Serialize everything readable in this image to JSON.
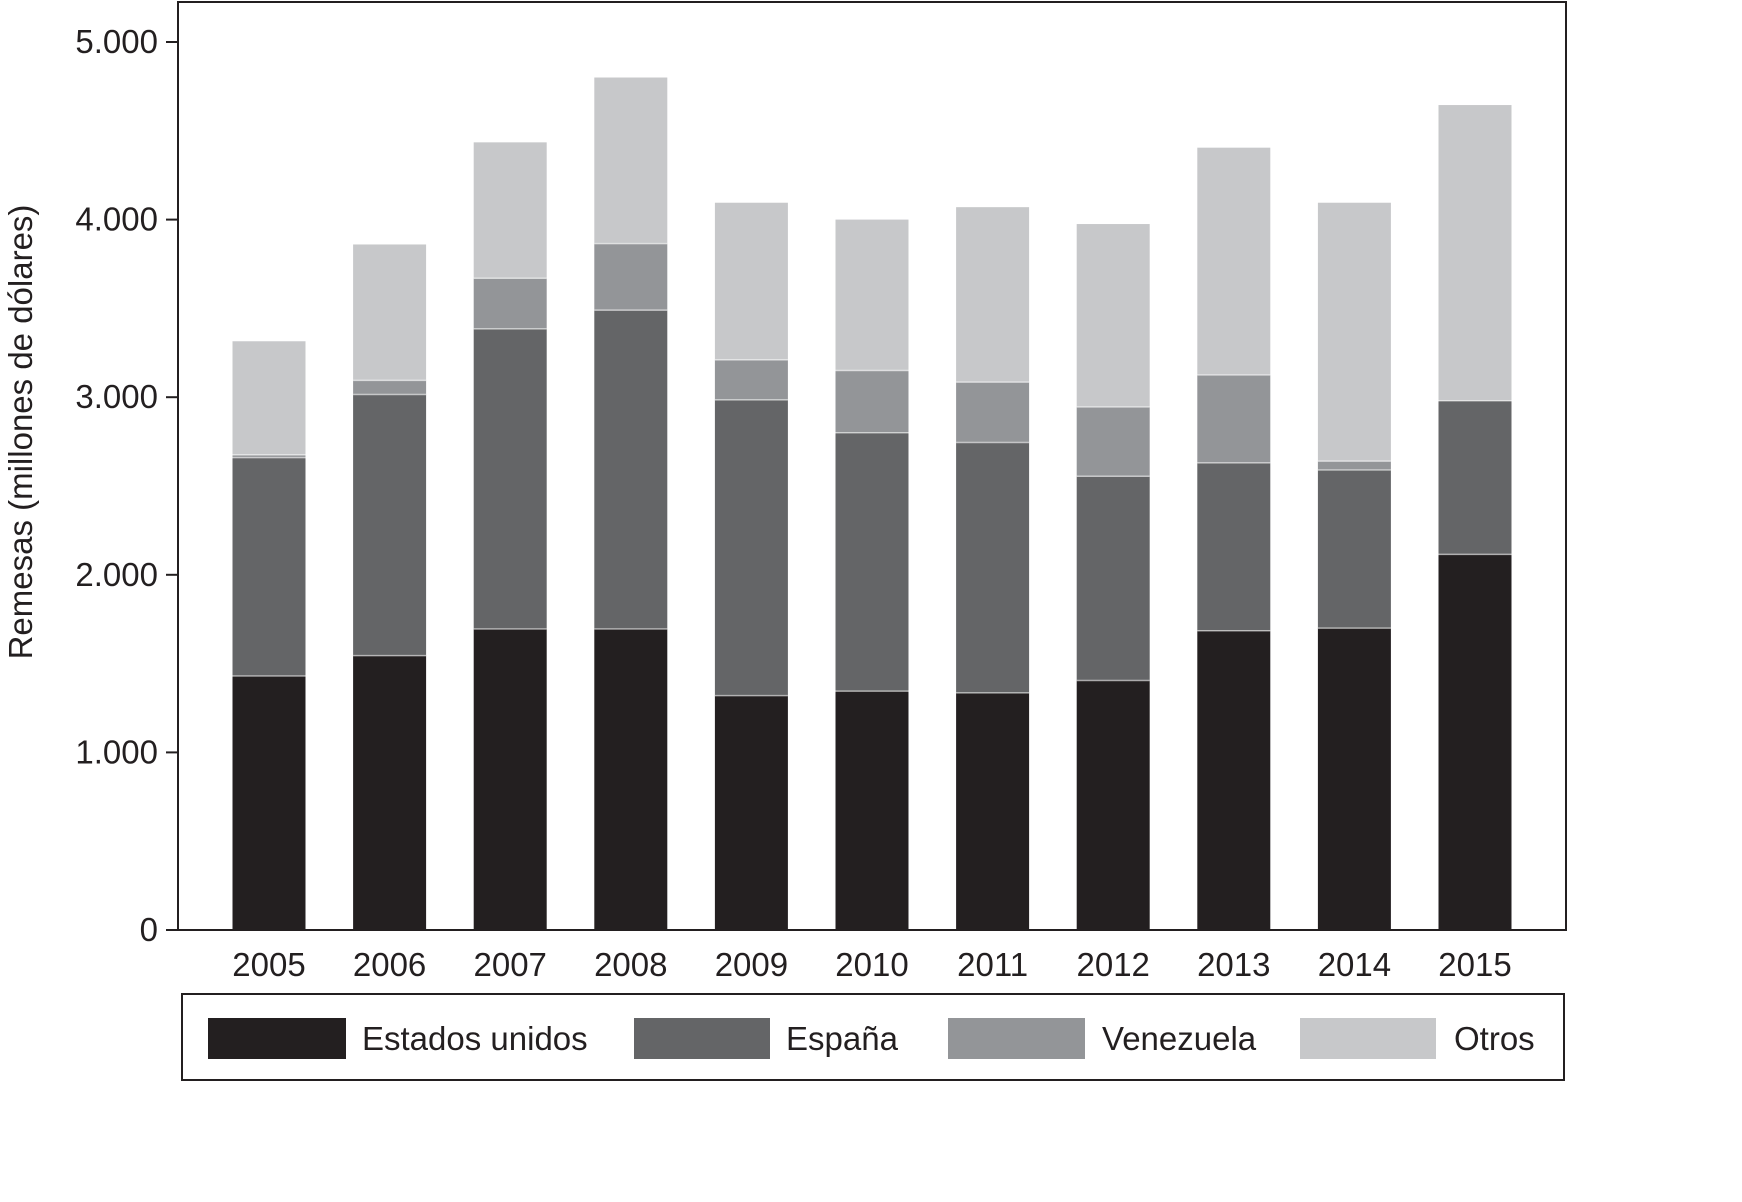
{
  "chart_data": {
    "type": "bar",
    "stacked": true,
    "ylabel": "Remesas (millones de dólares)",
    "xlabel": "",
    "ylim": [
      0,
      5000
    ],
    "yticks": [
      0,
      1000,
      2000,
      3000,
      4000,
      5000
    ],
    "ytick_labels": [
      "0",
      "1.000",
      "2.000",
      "3.000",
      "4.000",
      "5.000"
    ],
    "categories": [
      "2005",
      "2006",
      "2007",
      "2008",
      "2009",
      "2010",
      "2011",
      "2012",
      "2013",
      "2014",
      "2015"
    ],
    "series": [
      {
        "name": "Estados unidos",
        "color": "#231f20",
        "values": [
          1430,
          1545,
          1695,
          1695,
          1320,
          1345,
          1335,
          1405,
          1685,
          1700,
          2115
        ]
      },
      {
        "name": "España",
        "color": "#646567",
        "values": [
          1230,
          1470,
          1690,
          1795,
          1665,
          1455,
          1410,
          1150,
          945,
          890,
          865
        ]
      },
      {
        "name": "Venezuela",
        "color": "#939598",
        "values": [
          15,
          80,
          285,
          375,
          225,
          350,
          340,
          390,
          495,
          50,
          0
        ]
      },
      {
        "name": "Otros",
        "color": "#c7c8ca",
        "values": [
          640,
          765,
          765,
          935,
          885,
          850,
          985,
          1030,
          1280,
          1455,
          1665
        ]
      }
    ],
    "legend_position": "bottom",
    "grid": false
  }
}
